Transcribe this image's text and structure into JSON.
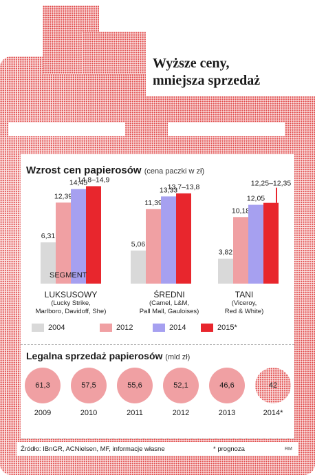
{
  "headline": {
    "line1": "Wyższe ceny,",
    "line2": "mniejsza sprzedaż"
  },
  "colors": {
    "y2004": "#d9d9d9",
    "y2012": "#f0a0a3",
    "y2014": "#a6a0f0",
    "y2015": "#e8262d",
    "dots": "#e04a4a"
  },
  "price_section": {
    "title": "Wzrost cen papierosów",
    "subtitle": "(cena paczki w zł)",
    "segment_label": "SEGMENT"
  },
  "sales_section": {
    "title": "Legalna sprzedaż papierosów",
    "subtitle": "(mld zł)"
  },
  "chart_data": [
    {
      "type": "bar",
      "title": "Wzrost cen papierosów",
      "subtitle": "(cena paczki w zł)",
      "categories": [
        "LUKSUSOWY",
        "ŚREDNI",
        "TANI"
      ],
      "category_details": [
        "(Lucky Strike,\nMarlboro, Davidoff, She)",
        "(Camel, L&M,\nPall Mall, Gauloises)",
        "(Viceroy,\nRed & White)"
      ],
      "series": [
        {
          "name": "2004",
          "values": [
            6.31,
            5.06,
            3.82
          ],
          "labels": [
            "6,31",
            "5,06",
            "3,82"
          ]
        },
        {
          "name": "2012",
          "values": [
            12.39,
            11.39,
            10.18
          ],
          "labels": [
            "12,39",
            "11,39",
            "10,18"
          ]
        },
        {
          "name": "2014",
          "values": [
            14.45,
            13.33,
            12.05
          ],
          "labels": [
            "14,45",
            "13,33",
            "12,05"
          ]
        },
        {
          "name": "2015*",
          "values": [
            14.9,
            13.8,
            12.35
          ],
          "ranges": [
            [
              14.8,
              14.9
            ],
            [
              13.7,
              13.8
            ],
            [
              12.25,
              12.35
            ]
          ],
          "labels": [
            "14,8–14,9",
            "13,7–13,8",
            "12,25–12,35"
          ]
        }
      ],
      "legend": [
        "2004",
        "2012",
        "2014",
        "2015*"
      ],
      "legend_position": "bottom"
    },
    {
      "type": "bubble",
      "title": "Legalna sprzedaż papierosów",
      "subtitle": "(mld zł)",
      "categories": [
        "2009",
        "2010",
        "2011",
        "2012",
        "2013",
        "2014*"
      ],
      "values": [
        61.3,
        57.5,
        55.6,
        52.1,
        46.6,
        42
      ],
      "labels": [
        "61,3",
        "57,5",
        "55,6",
        "52,1",
        "46,6",
        "42"
      ]
    }
  ],
  "footer": {
    "source": "Źródło: IBnGR, ACNielsen, MF, informacje własne",
    "note": "* prognoza",
    "signature": "RM"
  }
}
